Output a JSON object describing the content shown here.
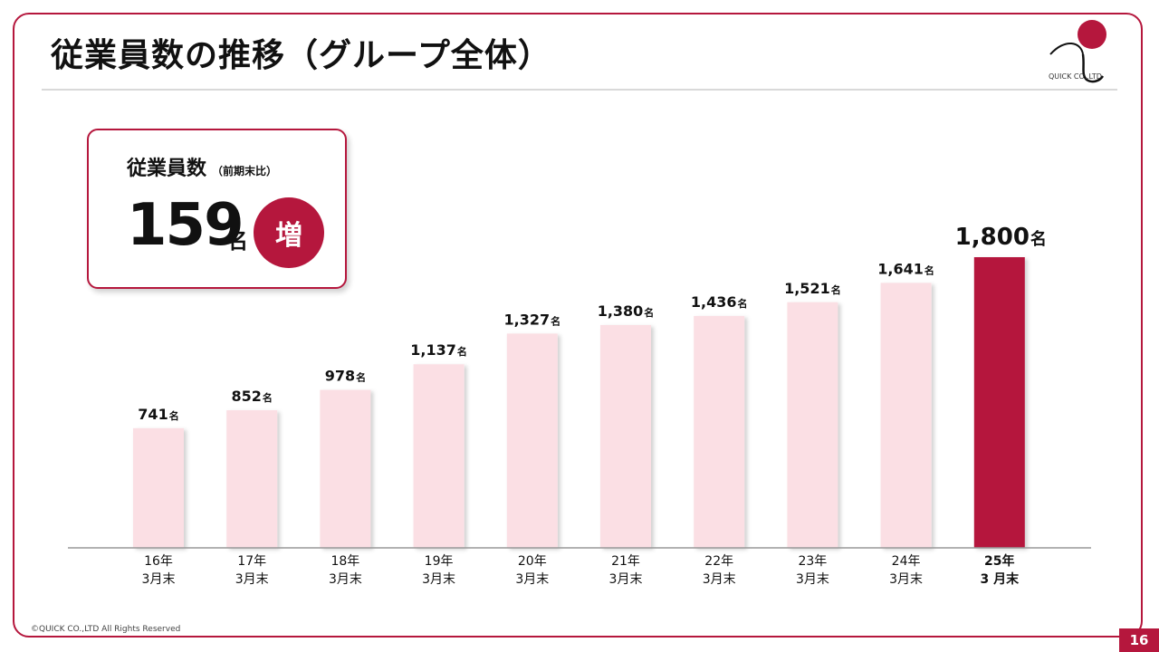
{
  "header": {
    "title": "従業員数の推移（グループ全体）",
    "logo_text": "QUICK CO.,LTD"
  },
  "summary": {
    "label": "従業員数",
    "sublabel": "（前期末比）",
    "value": "159",
    "unit": "名",
    "badge": "増"
  },
  "chart_data": {
    "type": "bar",
    "categories": [
      [
        "16年",
        "3月末"
      ],
      [
        "17年",
        "3月末"
      ],
      [
        "18年",
        "3月末"
      ],
      [
        "19年",
        "3月末"
      ],
      [
        "20年",
        "3月末"
      ],
      [
        "21年",
        "3月末"
      ],
      [
        "22年",
        "3月末"
      ],
      [
        "23年",
        "3月末"
      ],
      [
        "24年",
        "3月末"
      ],
      [
        "25年",
        "3 月末"
      ]
    ],
    "values": [
      741,
      852,
      978,
      1137,
      1327,
      1380,
      1436,
      1521,
      1641,
      1800
    ],
    "value_labels": [
      "741",
      "852",
      "978",
      "1,137",
      "1,327",
      "1,380",
      "1,436",
      "1,521",
      "1,641",
      "1,800"
    ],
    "unit": "名",
    "highlight_index": 9,
    "colors": {
      "bar": "#fbdfe4",
      "highlight": "#b5173d",
      "axis": "#999999"
    },
    "ylim": [
      0,
      1800
    ],
    "grid": false,
    "legend": "none"
  },
  "footer": {
    "copyright": "©QUICK CO.,LTD All Rights Reserved",
    "page": "16"
  }
}
